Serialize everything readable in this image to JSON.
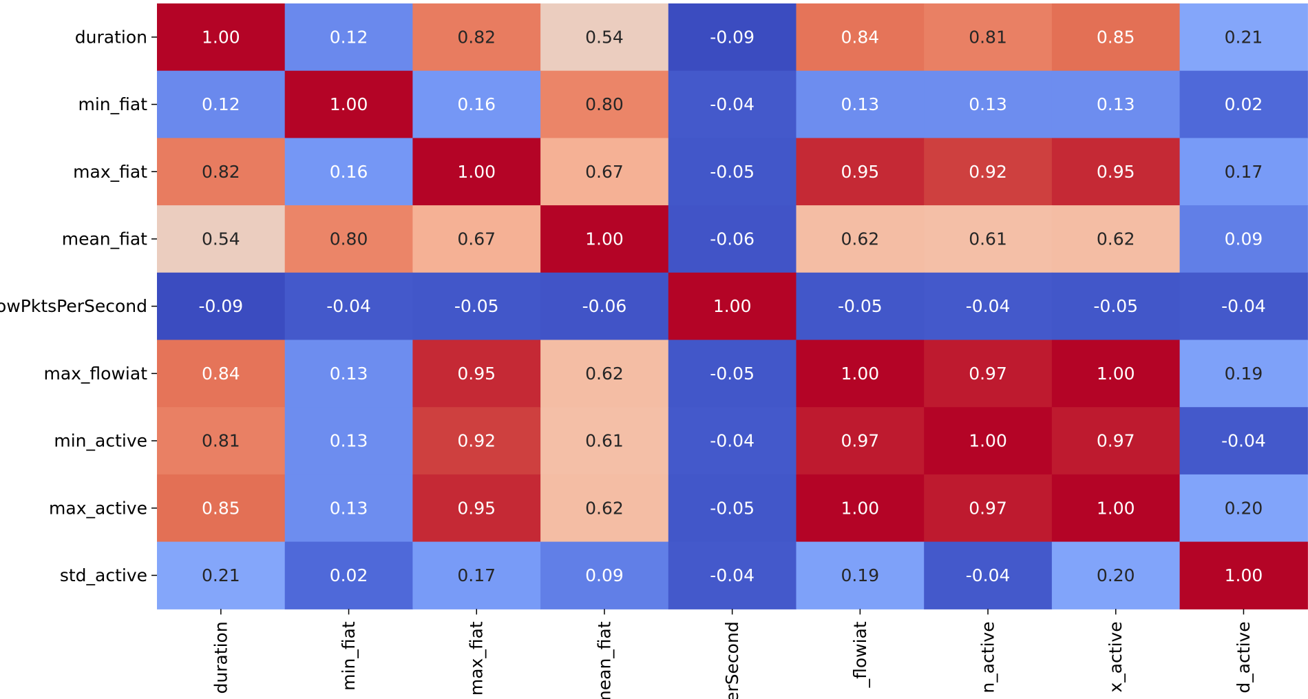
{
  "chart_data": {
    "type": "heatmap",
    "title": "",
    "colormap": "coolwarm",
    "vmin": -0.09,
    "vmax": 1.0,
    "row_labels": [
      "duration",
      "min_fiat",
      "max_fiat",
      "mean_fiat",
      "flowPktsPerSecond",
      "max_flowiat",
      "min_active",
      "max_active",
      "std_active"
    ],
    "col_labels": [
      "duration",
      "min_fiat",
      "max_fiat",
      "mean_fiat",
      "erSecond",
      "_flowiat",
      "n_active",
      "x_active",
      "d_active"
    ],
    "values": [
      [
        1.0,
        0.12,
        0.82,
        0.54,
        -0.09,
        0.84,
        0.81,
        0.85,
        0.21
      ],
      [
        0.12,
        1.0,
        0.16,
        0.8,
        -0.04,
        0.13,
        0.13,
        0.13,
        0.02
      ],
      [
        0.82,
        0.16,
        1.0,
        0.67,
        -0.05,
        0.95,
        0.92,
        0.95,
        0.17
      ],
      [
        0.54,
        0.8,
        0.67,
        1.0,
        -0.06,
        0.62,
        0.61,
        0.62,
        0.09
      ],
      [
        -0.09,
        -0.04,
        -0.05,
        -0.06,
        1.0,
        -0.05,
        -0.04,
        -0.05,
        -0.04
      ],
      [
        0.84,
        0.13,
        0.95,
        0.62,
        -0.05,
        1.0,
        0.97,
        1.0,
        0.19
      ],
      [
        0.81,
        0.13,
        0.92,
        0.61,
        -0.04,
        0.97,
        1.0,
        0.97,
        -0.04
      ],
      [
        0.85,
        0.13,
        0.95,
        0.62,
        -0.05,
        1.0,
        0.97,
        1.0,
        0.2
      ],
      [
        0.21,
        0.02,
        0.17,
        0.09,
        -0.04,
        0.19,
        -0.04,
        0.2,
        1.0
      ]
    ],
    "annotation_format": "0.00"
  }
}
